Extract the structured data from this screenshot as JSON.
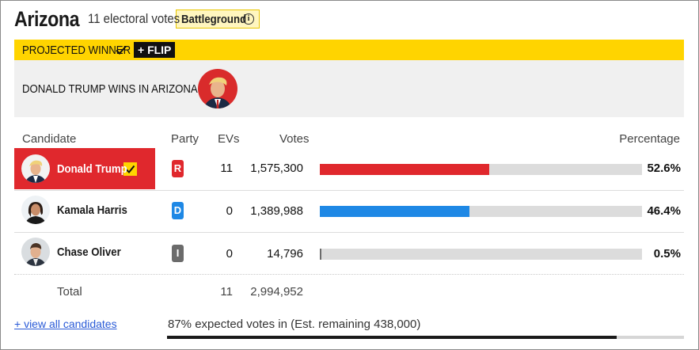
{
  "header": {
    "state": "Arizona",
    "electoral_votes": "11 electoral votes",
    "badge": "Battleground"
  },
  "projection": {
    "label": "PROJECTED WINNER",
    "flip": "+ FLIP",
    "winner_text": "DONALD TRUMP WINS IN ARIZONA"
  },
  "columns": {
    "candidate": "Candidate",
    "party": "Party",
    "evs": "EVs",
    "votes": "Votes",
    "percentage": "Percentage"
  },
  "candidates": [
    {
      "name": "Donald Trump",
      "party": "R",
      "evs": "11",
      "votes": "1,575,300",
      "percentage": "52.6%",
      "pct_value": 52.6,
      "color": "#e0282d",
      "winner": true
    },
    {
      "name": "Kamala Harris",
      "party": "D",
      "evs": "0",
      "votes": "1,389,988",
      "percentage": "46.4%",
      "pct_value": 46.4,
      "color": "#1e88e5",
      "winner": false
    },
    {
      "name": "Chase Oliver",
      "party": "I",
      "evs": "0",
      "votes": "14,796",
      "percentage": "0.5%",
      "pct_value": 0.5,
      "color": "#6b6b6b",
      "winner": false
    }
  ],
  "total": {
    "label": "Total",
    "evs": "11",
    "votes": "2,994,952"
  },
  "footer": {
    "view_all": "+ view all candidates",
    "expected": "87% expected votes in (Est. remaining 438,000)",
    "expected_pct": 87
  },
  "colors": {
    "projection_bar": "#ffd400",
    "republican": "#e0282d",
    "democrat": "#1e88e5",
    "independent": "#6b6b6b"
  }
}
